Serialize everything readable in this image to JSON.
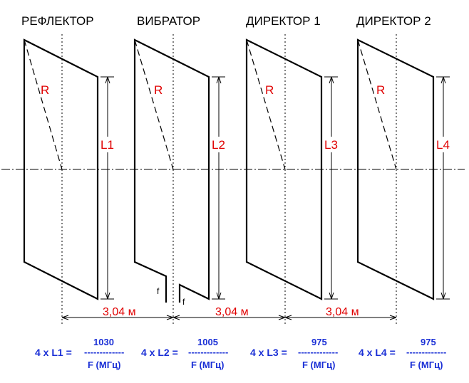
{
  "elements": [
    {
      "title": "РЕФЛЕКТОР",
      "radius_label": "R",
      "length_label": "L1"
    },
    {
      "title": "ВИБРАТОР",
      "radius_label": "R",
      "length_label": "L2",
      "feed_labels": [
        "f",
        "f"
      ]
    },
    {
      "title": "ДИРЕКТОР 1",
      "radius_label": "R",
      "length_label": "L3"
    },
    {
      "title": "ДИРЕКТОР 2",
      "radius_label": "R",
      "length_label": "L4"
    }
  ],
  "spacings": [
    "3,04 м",
    "3,04 м",
    "3,04 м"
  ],
  "formulas": [
    {
      "lhs": "4 x L1 =",
      "numerator": "1030",
      "bar": "-------------",
      "denominator": "F (МГц)"
    },
    {
      "lhs": "4 x L2 =",
      "numerator": "1005",
      "bar": "-------------",
      "denominator": "F (МГц)"
    },
    {
      "lhs": "4 x L3 =",
      "numerator": "975",
      "bar": "-------------",
      "denominator": "F (МГц)"
    },
    {
      "lhs": "4 x L4 =",
      "numerator": "975",
      "bar": "-------------",
      "denominator": "F (МГц)"
    }
  ],
  "colors": {
    "lines": "#000000",
    "labels": "#e00000",
    "formulas": "#1a2fd6"
  }
}
